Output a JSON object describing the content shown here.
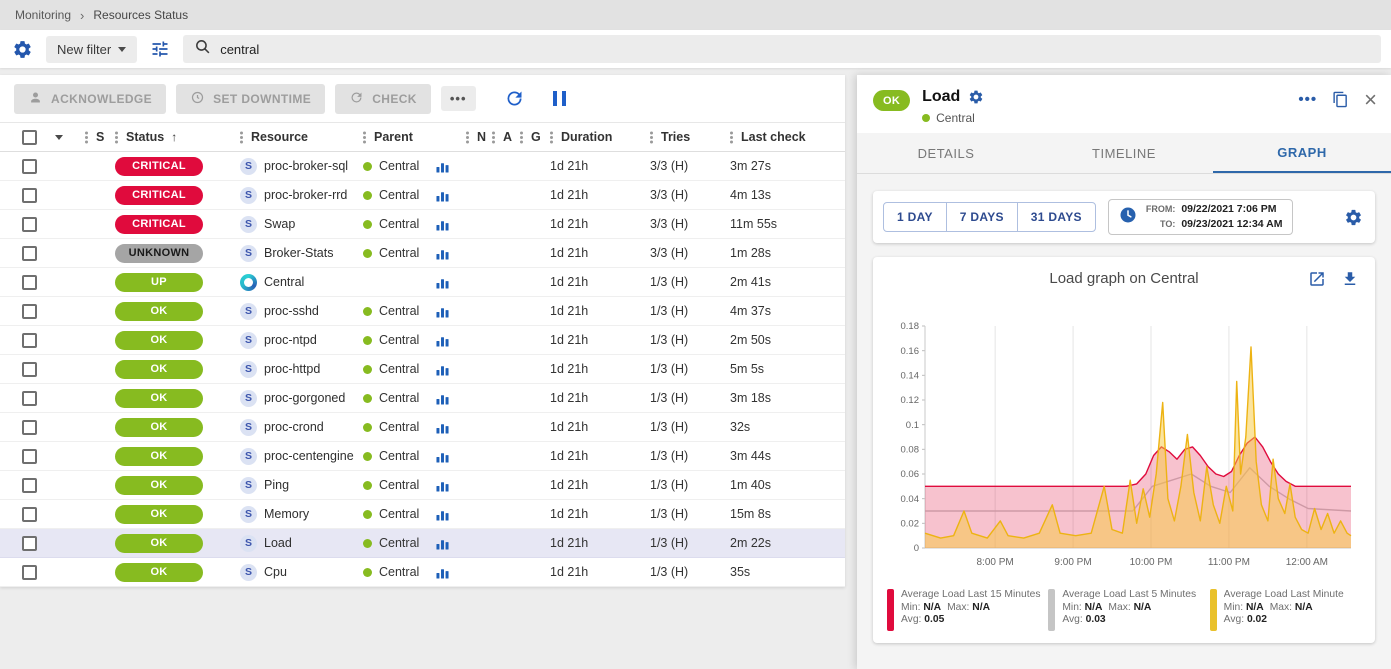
{
  "breadcrumb": {
    "items": [
      "Monitoring",
      "Resources Status"
    ],
    "separator": "›"
  },
  "filter_bar": {
    "new_filter_label": "New filter",
    "search_value": "central"
  },
  "toolbar": {
    "acknowledge_label": "ACKNOWLEDGE",
    "set_downtime_label": "SET DOWNTIME",
    "check_label": "CHECK",
    "more_label": "•••"
  },
  "icons": {
    "sort_asc": "↑",
    "panel_more": "•••",
    "close": "×"
  },
  "table": {
    "service_icon_letter": "S",
    "headers": {
      "s": "S",
      "status": "Status",
      "resource": "Resource",
      "parent": "Parent",
      "n": "N",
      "a": "A",
      "g": "G",
      "duration": "Duration",
      "tries": "Tries",
      "last_check": "Last check"
    },
    "rows": [
      {
        "severity": "critical",
        "status": "CRITICAL",
        "type": "service",
        "resource": "proc-broker-sql",
        "parent": "Central",
        "duration": "1d 21h",
        "tries": "3/3 (H)",
        "last_check": "3m 27s",
        "selected": false
      },
      {
        "severity": "critical",
        "status": "CRITICAL",
        "type": "service",
        "resource": "proc-broker-rrd",
        "parent": "Central",
        "duration": "1d 21h",
        "tries": "3/3 (H)",
        "last_check": "4m 13s",
        "selected": false
      },
      {
        "severity": "critical",
        "status": "CRITICAL",
        "type": "service",
        "resource": "Swap",
        "parent": "Central",
        "duration": "1d 21h",
        "tries": "3/3 (H)",
        "last_check": "11m 55s",
        "selected": false
      },
      {
        "severity": "unknown",
        "status": "UNKNOWN",
        "type": "service",
        "resource": "Broker-Stats",
        "parent": "Central",
        "duration": "1d 21h",
        "tries": "3/3 (H)",
        "last_check": "1m 28s",
        "selected": false
      },
      {
        "severity": "up",
        "status": "UP",
        "type": "host",
        "resource": "Central",
        "parent": "",
        "duration": "1d 21h",
        "tries": "1/3 (H)",
        "last_check": "2m 41s",
        "selected": false
      },
      {
        "severity": "ok",
        "status": "OK",
        "type": "service",
        "resource": "proc-sshd",
        "parent": "Central",
        "duration": "1d 21h",
        "tries": "1/3 (H)",
        "last_check": "4m 37s",
        "selected": false
      },
      {
        "severity": "ok",
        "status": "OK",
        "type": "service",
        "resource": "proc-ntpd",
        "parent": "Central",
        "duration": "1d 21h",
        "tries": "1/3 (H)",
        "last_check": "2m 50s",
        "selected": false
      },
      {
        "severity": "ok",
        "status": "OK",
        "type": "service",
        "resource": "proc-httpd",
        "parent": "Central",
        "duration": "1d 21h",
        "tries": "1/3 (H)",
        "last_check": "5m 5s",
        "selected": false
      },
      {
        "severity": "ok",
        "status": "OK",
        "type": "service",
        "resource": "proc-gorgoned",
        "parent": "Central",
        "duration": "1d 21h",
        "tries": "1/3 (H)",
        "last_check": "3m 18s",
        "selected": false
      },
      {
        "severity": "ok",
        "status": "OK",
        "type": "service",
        "resource": "proc-crond",
        "parent": "Central",
        "duration": "1d 21h",
        "tries": "1/3 (H)",
        "last_check": "32s",
        "selected": false
      },
      {
        "severity": "ok",
        "status": "OK",
        "type": "service",
        "resource": "proc-centengine",
        "parent": "Central",
        "duration": "1d 21h",
        "tries": "1/3 (H)",
        "last_check": "3m 44s",
        "selected": false
      },
      {
        "severity": "ok",
        "status": "OK",
        "type": "service",
        "resource": "Ping",
        "parent": "Central",
        "duration": "1d 21h",
        "tries": "1/3 (H)",
        "last_check": "1m 40s",
        "selected": false
      },
      {
        "severity": "ok",
        "status": "OK",
        "type": "service",
        "resource": "Memory",
        "parent": "Central",
        "duration": "1d 21h",
        "tries": "1/3 (H)",
        "last_check": "15m 8s",
        "selected": false
      },
      {
        "severity": "ok",
        "status": "OK",
        "type": "service",
        "resource": "Load",
        "parent": "Central",
        "duration": "1d 21h",
        "tries": "1/3 (H)",
        "last_check": "2m 22s",
        "selected": true
      },
      {
        "severity": "ok",
        "status": "OK",
        "type": "service",
        "resource": "Cpu",
        "parent": "Central",
        "duration": "1d 21h",
        "tries": "1/3 (H)",
        "last_check": "35s",
        "selected": false
      }
    ]
  },
  "panel": {
    "status": "OK",
    "title": "Load",
    "parent": "Central",
    "tabs": [
      {
        "label": "DETAILS",
        "active": false
      },
      {
        "label": "TIMELINE",
        "active": false
      },
      {
        "label": "GRAPH",
        "active": true
      }
    ],
    "time_buttons": [
      "1 DAY",
      "7 DAYS",
      "31 DAYS"
    ],
    "from_label": "FROM:",
    "from_value": "09/22/2021 7:06 PM",
    "to_label": "TO:",
    "to_value": "09/23/2021 12:34 AM",
    "graph_title": "Load graph on Central"
  },
  "chart_data": {
    "type": "area",
    "title": "Load graph on Central",
    "x_unit": "minutes since 09/22/2021 7:06 PM",
    "xlim": [
      0,
      328
    ],
    "x_ticks": [
      {
        "t": 54,
        "label": "8:00 PM"
      },
      {
        "t": 114,
        "label": "9:00 PM"
      },
      {
        "t": 174,
        "label": "10:00 PM"
      },
      {
        "t": 234,
        "label": "11:00 PM"
      },
      {
        "t": 294,
        "label": "12:00 AM"
      }
    ],
    "ylim": [
      0,
      0.18
    ],
    "y_ticks": [
      0,
      0.02,
      0.04,
      0.06,
      0.08,
      0.1,
      0.12,
      0.14,
      0.16,
      0.18
    ],
    "grid": "vertical",
    "legend_position": "bottom",
    "legend_labels": {
      "min": "Min:",
      "max": "Max:",
      "avg": "Avg:"
    },
    "legend": [
      {
        "name": "Average Load Last 15 Minutes",
        "color": "#e00b3d",
        "min": "N/A",
        "max": "N/A",
        "avg": "0.05"
      },
      {
        "name": "Average Load Last 5 Minutes",
        "color": "#c5c5c5",
        "min": "N/A",
        "max": "N/A",
        "avg": "0.03"
      },
      {
        "name": "Average Load Last Minute",
        "color": "#e9c12c",
        "min": "N/A",
        "max": "N/A",
        "avg": "0.02"
      }
    ],
    "series": [
      {
        "name": "Average Load Last 5 Minutes",
        "color": "#c9c9c9",
        "fill": null,
        "points": [
          [
            0,
            0.03
          ],
          [
            160,
            0.03
          ],
          [
            175,
            0.05
          ],
          [
            190,
            0.055
          ],
          [
            205,
            0.06
          ],
          [
            220,
            0.05
          ],
          [
            235,
            0.045
          ],
          [
            250,
            0.065
          ],
          [
            265,
            0.05
          ],
          [
            280,
            0.04
          ],
          [
            295,
            0.032
          ],
          [
            328,
            0.03
          ]
        ]
      },
      {
        "name": "Average Load Last 15 Minutes",
        "color": "#e00b3d",
        "fill": "rgba(224,11,61,0.25)",
        "points": [
          [
            0,
            0.05
          ],
          [
            155,
            0.05
          ],
          [
            163,
            0.052
          ],
          [
            170,
            0.06
          ],
          [
            176,
            0.075
          ],
          [
            182,
            0.082
          ],
          [
            188,
            0.078
          ],
          [
            194,
            0.072
          ],
          [
            200,
            0.08
          ],
          [
            206,
            0.082
          ],
          [
            212,
            0.075
          ],
          [
            218,
            0.066
          ],
          [
            224,
            0.06
          ],
          [
            230,
            0.058
          ],
          [
            236,
            0.062
          ],
          [
            242,
            0.075
          ],
          [
            248,
            0.085
          ],
          [
            254,
            0.09
          ],
          [
            260,
            0.082
          ],
          [
            266,
            0.07
          ],
          [
            272,
            0.06
          ],
          [
            278,
            0.054
          ],
          [
            285,
            0.05
          ],
          [
            328,
            0.05
          ]
        ]
      },
      {
        "name": "Average Load Last Minute",
        "color": "#edb313",
        "fill": "rgba(248,201,62,0.5)",
        "points": [
          [
            0,
            0.012
          ],
          [
            12,
            0.008
          ],
          [
            22,
            0.01
          ],
          [
            30,
            0.03
          ],
          [
            36,
            0.012
          ],
          [
            48,
            0.008
          ],
          [
            58,
            0.022
          ],
          [
            64,
            0.01
          ],
          [
            76,
            0.008
          ],
          [
            88,
            0.012
          ],
          [
            98,
            0.035
          ],
          [
            104,
            0.012
          ],
          [
            116,
            0.01
          ],
          [
            128,
            0.012
          ],
          [
            138,
            0.05
          ],
          [
            144,
            0.015
          ],
          [
            152,
            0.012
          ],
          [
            158,
            0.055
          ],
          [
            163,
            0.02
          ],
          [
            168,
            0.048
          ],
          [
            173,
            0.025
          ],
          [
            178,
            0.06
          ],
          [
            183,
            0.118
          ],
          [
            187,
            0.04
          ],
          [
            192,
            0.022
          ],
          [
            197,
            0.05
          ],
          [
            202,
            0.092
          ],
          [
            207,
            0.045
          ],
          [
            212,
            0.022
          ],
          [
            217,
            0.066
          ],
          [
            222,
            0.035
          ],
          [
            227,
            0.02
          ],
          [
            232,
            0.05
          ],
          [
            237,
            0.03
          ],
          [
            240,
            0.135
          ],
          [
            243,
            0.06
          ],
          [
            247,
            0.09
          ],
          [
            251,
            0.163
          ],
          [
            255,
            0.07
          ],
          [
            259,
            0.035
          ],
          [
            264,
            0.022
          ],
          [
            268,
            0.072
          ],
          [
            272,
            0.04
          ],
          [
            277,
            0.028
          ],
          [
            281,
            0.052
          ],
          [
            285,
            0.025
          ],
          [
            290,
            0.015
          ],
          [
            295,
            0.012
          ],
          [
            300,
            0.032
          ],
          [
            305,
            0.015
          ],
          [
            310,
            0.028
          ],
          [
            315,
            0.012
          ],
          [
            320,
            0.022
          ],
          [
            325,
            0.012
          ],
          [
            328,
            0.01
          ]
        ]
      }
    ]
  }
}
